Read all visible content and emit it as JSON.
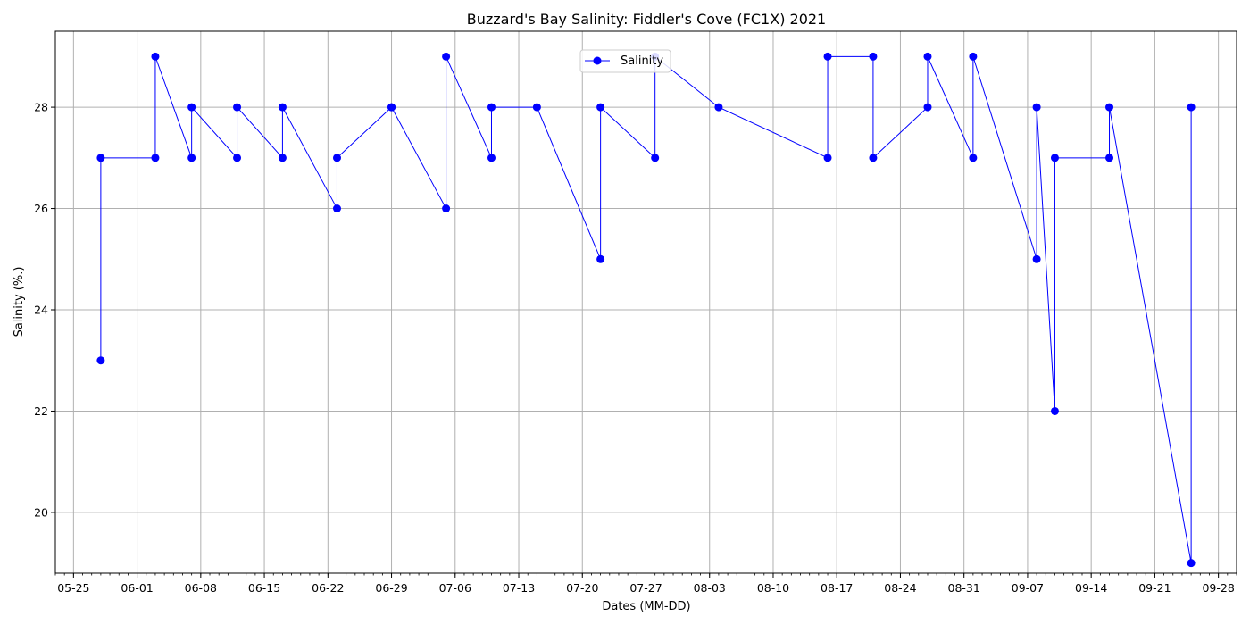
{
  "chart_data": {
    "type": "line",
    "title": "Buzzard's Bay Salinity: Fiddler's Cove (FC1X) 2021",
    "xlabel": "Dates (MM-DD)",
    "ylabel": "Salinity (%.)",
    "x_tick_labels": [
      "05-25",
      "06-01",
      "06-08",
      "06-15",
      "06-22",
      "06-29",
      "07-06",
      "07-13",
      "07-20",
      "07-27",
      "08-03",
      "08-10",
      "08-17",
      "08-24",
      "08-31",
      "09-07",
      "09-14",
      "09-21",
      "09-28"
    ],
    "y_ticks": [
      20,
      22,
      24,
      26,
      28
    ],
    "xlim": [
      "2021-05-23",
      "2021-09-30"
    ],
    "ylim": [
      18.8,
      29.5
    ],
    "grid": true,
    "legend_position": "top-center",
    "colors": {
      "series": "#0000ff",
      "grid": "#b0b0b0"
    },
    "series": [
      {
        "name": "Salinity",
        "points": [
          {
            "x": "2021-05-28",
            "y": 23
          },
          {
            "x": "2021-05-28",
            "y": 27
          },
          {
            "x": "2021-06-03",
            "y": 27
          },
          {
            "x": "2021-06-03",
            "y": 29
          },
          {
            "x": "2021-06-07",
            "y": 27
          },
          {
            "x": "2021-06-07",
            "y": 28
          },
          {
            "x": "2021-06-12",
            "y": 27
          },
          {
            "x": "2021-06-12",
            "y": 28
          },
          {
            "x": "2021-06-17",
            "y": 27
          },
          {
            "x": "2021-06-17",
            "y": 28
          },
          {
            "x": "2021-06-23",
            "y": 26
          },
          {
            "x": "2021-06-23",
            "y": 27
          },
          {
            "x": "2021-06-29",
            "y": 28
          },
          {
            "x": "2021-06-29",
            "y": 28
          },
          {
            "x": "2021-07-05",
            "y": 26
          },
          {
            "x": "2021-07-05",
            "y": 29
          },
          {
            "x": "2021-07-10",
            "y": 27
          },
          {
            "x": "2021-07-10",
            "y": 28
          },
          {
            "x": "2021-07-15",
            "y": 28
          },
          {
            "x": "2021-07-22",
            "y": 25
          },
          {
            "x": "2021-07-22",
            "y": 28
          },
          {
            "x": "2021-07-28",
            "y": 27
          },
          {
            "x": "2021-07-28",
            "y": 29
          },
          {
            "x": "2021-08-04",
            "y": 28
          },
          {
            "x": "2021-08-16",
            "y": 27
          },
          {
            "x": "2021-08-16",
            "y": 29
          },
          {
            "x": "2021-08-21",
            "y": 29
          },
          {
            "x": "2021-08-21",
            "y": 27
          },
          {
            "x": "2021-08-27",
            "y": 28
          },
          {
            "x": "2021-08-27",
            "y": 29
          },
          {
            "x": "2021-09-01",
            "y": 27
          },
          {
            "x": "2021-09-01",
            "y": 29
          },
          {
            "x": "2021-09-08",
            "y": 25
          },
          {
            "x": "2021-09-08",
            "y": 28
          },
          {
            "x": "2021-09-10",
            "y": 22
          },
          {
            "x": "2021-09-10",
            "y": 27
          },
          {
            "x": "2021-09-16",
            "y": 27
          },
          {
            "x": "2021-09-16",
            "y": 28
          },
          {
            "x": "2021-09-25",
            "y": 19
          },
          {
            "x": "2021-09-25",
            "y": 28
          }
        ]
      }
    ]
  }
}
